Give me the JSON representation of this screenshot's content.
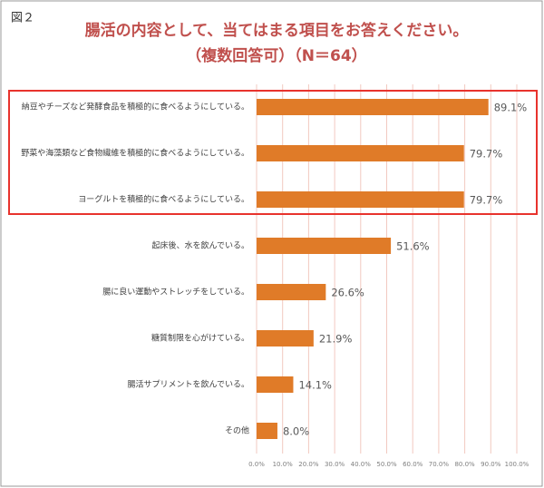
{
  "figure_label": "図２",
  "chart_data": {
    "type": "hbar",
    "title": "腸活の内容として、当てはまる項目をお答えください。",
    "subtitle": "（複数回答可）（N＝64）",
    "categories": [
      "納豆やチーズなど発酵食品を積極的に食べるようにしている。",
      "野菜や海藻類など食物繊維を積極的に食べるようにしている。",
      "ヨーグルトを積極的に食べるようにしている。",
      "起床後、水を飲んでいる。",
      "腸に良い運動やストレッチをしている。",
      "糖質制限を心がけている。",
      "腸活サプリメントを飲んでいる。",
      "その他"
    ],
    "values": [
      89.1,
      79.7,
      79.7,
      51.6,
      26.6,
      21.9,
      14.1,
      8.0
    ],
    "value_labels": [
      "89.1%",
      "79.7%",
      "79.7%",
      "51.6%",
      "26.6%",
      "21.9%",
      "14.1%",
      "8.0%"
    ],
    "color": "#e07b28",
    "xlim": [
      0,
      100
    ],
    "xticks": [
      {
        "value": 0,
        "label": "0.0%"
      },
      {
        "value": 10,
        "label": "10.0%"
      },
      {
        "value": 20,
        "label": "20.0%"
      },
      {
        "value": 30,
        "label": "30.0%"
      },
      {
        "value": 40,
        "label": "40.0%"
      },
      {
        "value": 50,
        "label": "50.0%"
      },
      {
        "value": 60,
        "label": "60.0%"
      },
      {
        "value": 70,
        "label": "70.0%"
      },
      {
        "value": 80,
        "label": "80.0%"
      },
      {
        "value": 90,
        "label": "90.0%"
      },
      {
        "value": 100,
        "label": "100.0%"
      }
    ],
    "grid": true
  }
}
